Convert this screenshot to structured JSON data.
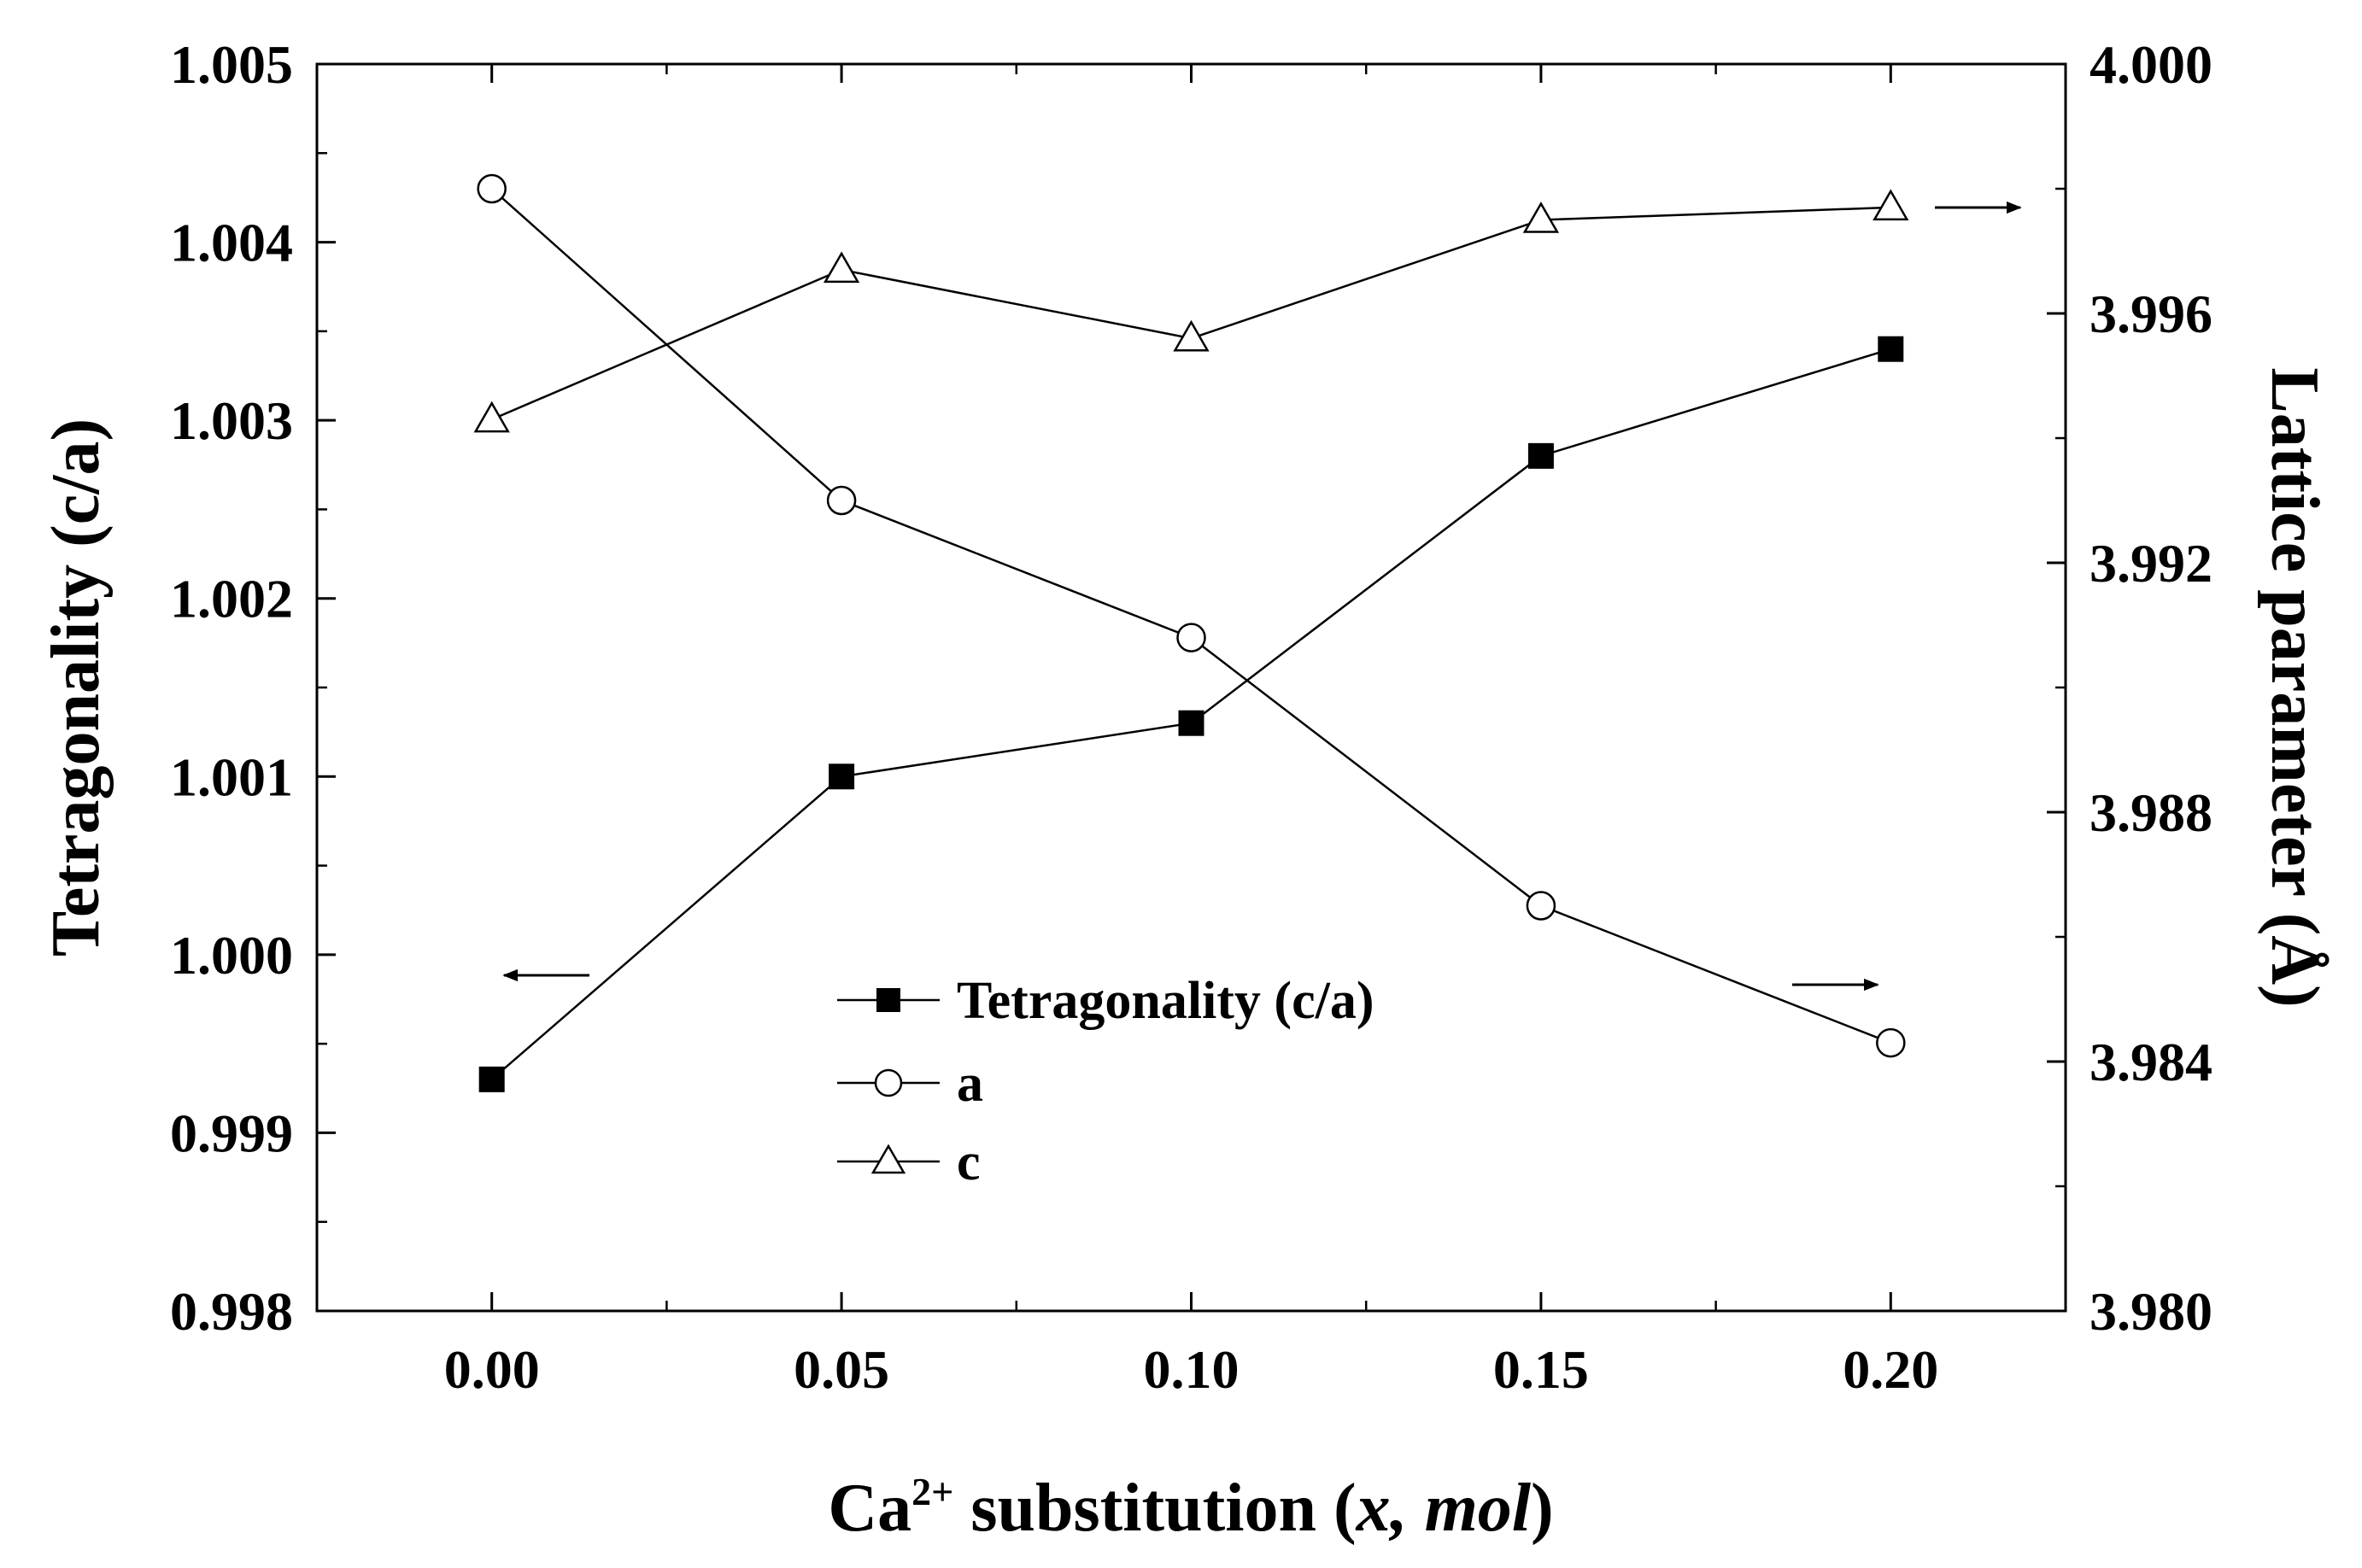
{
  "chart_data": {
    "type": "line",
    "x": [
      0.0,
      0.05,
      0.1,
      0.15,
      0.2
    ],
    "xlim": [
      -0.025,
      0.225
    ],
    "xticks": [
      "0.00",
      "0.05",
      "0.10",
      "0.15",
      "0.20"
    ],
    "xlabel": {
      "prefix": "Ca",
      "superscript": "2+",
      "middle": " substitution ",
      "paren_open": "(",
      "italic": "x, mol",
      "paren_close": ")"
    },
    "y_left": {
      "label": "Tetragonality (c/a)",
      "lim": [
        0.998,
        1.005
      ],
      "ticks": [
        "0.998",
        "0.999",
        "1.000",
        "1.001",
        "1.002",
        "1.003",
        "1.004",
        "1.005"
      ]
    },
    "y_right": {
      "label": "Lattice parameter (Å)",
      "lim": [
        3.98,
        4.0
      ],
      "ticks": [
        "3.980",
        "3.984",
        "3.988",
        "3.992",
        "3.996",
        "4.000"
      ]
    },
    "series": [
      {
        "name": "Tetragonality (c/a)",
        "axis": "left",
        "marker": "filled-square",
        "values": [
          0.9993,
          1.001,
          1.0013,
          1.0028,
          1.0034
        ]
      },
      {
        "name": "a",
        "axis": "right",
        "marker": "open-circle",
        "values": [
          3.998,
          3.993,
          3.9908,
          3.9865,
          3.9843
        ]
      },
      {
        "name": "c",
        "axis": "right",
        "marker": "open-triangle",
        "values": [
          3.9943,
          3.9967,
          3.9956,
          3.9975,
          3.9977
        ]
      }
    ],
    "legend_position": "center-bottom",
    "annotations": [
      {
        "type": "arrow",
        "direction": "left",
        "points_to": "left axis",
        "near_series": "Tetragonality (c/a)"
      },
      {
        "type": "arrow",
        "direction": "right",
        "points_to": "right axis",
        "near_series": "a"
      },
      {
        "type": "arrow",
        "direction": "right",
        "points_to": "right axis",
        "near_series": "c"
      }
    ]
  }
}
